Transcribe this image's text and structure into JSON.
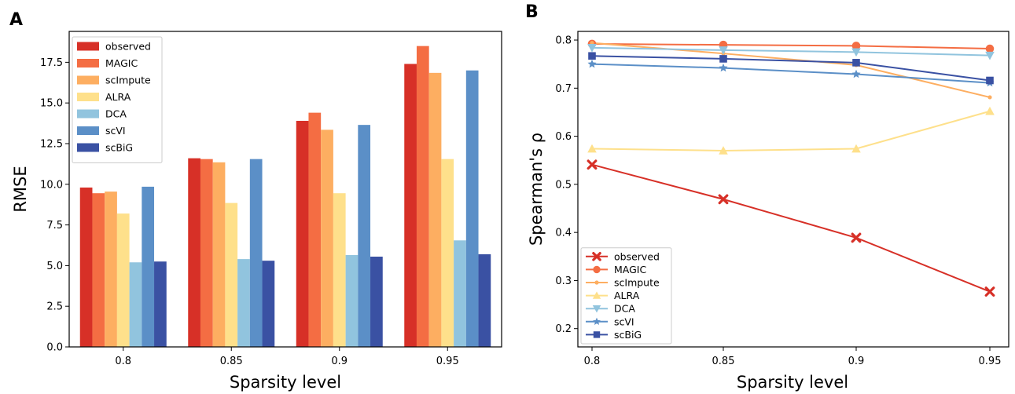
{
  "chart_data": [
    {
      "type": "bar",
      "panel_label": "A",
      "categories": [
        "0.8",
        "0.85",
        "0.9",
        "0.95"
      ],
      "xlabel": "Sparsity level",
      "ylabel": "RMSE",
      "ylim": [
        0,
        19.4
      ],
      "yticks": [
        "0.0",
        "2.5",
        "5.0",
        "7.5",
        "10.0",
        "12.5",
        "15.0",
        "17.5"
      ],
      "legend_position": "top-left",
      "series": [
        {
          "name": "observed",
          "color": "#d73027",
          "values": [
            9.8,
            11.6,
            13.9,
            17.4
          ]
        },
        {
          "name": "MAGIC",
          "color": "#f46d43",
          "values": [
            9.45,
            11.55,
            14.4,
            18.5
          ]
        },
        {
          "name": "scImpute",
          "color": "#fdae61",
          "values": [
            9.55,
            11.35,
            13.35,
            16.85
          ]
        },
        {
          "name": "ALRA",
          "color": "#fee08b",
          "values": [
            8.2,
            8.85,
            9.45,
            11.55
          ]
        },
        {
          "name": "DCA",
          "color": "#91c4de",
          "values": [
            5.2,
            5.4,
            5.65,
            6.55
          ]
        },
        {
          "name": "scVI",
          "color": "#5b8fc7",
          "values": [
            9.85,
            11.55,
            13.65,
            17.0
          ]
        },
        {
          "name": "scBiG",
          "color": "#3a51a3",
          "values": [
            5.25,
            5.3,
            5.55,
            5.7
          ]
        }
      ]
    },
    {
      "type": "line",
      "panel_label": "B",
      "x": [
        "0.8",
        "0.85",
        "0.9",
        "0.95"
      ],
      "xlabel": "Sparsity level",
      "ylabel": "Spearman's ρ",
      "ylim": [
        0.162,
        0.818
      ],
      "yticks": [
        "0.2",
        "0.3",
        "0.4",
        "0.5",
        "0.6",
        "0.7",
        "0.8"
      ],
      "legend_position": "bottom-left",
      "series": [
        {
          "name": "observed",
          "color": "#d73027",
          "marker": "x",
          "values": [
            0.541,
            0.469,
            0.389,
            0.277
          ]
        },
        {
          "name": "MAGIC",
          "color": "#f46d43",
          "marker": "circle",
          "values": [
            0.792,
            0.79,
            0.788,
            0.782
          ]
        },
        {
          "name": "scImpute",
          "color": "#fdae61",
          "marker": "dot",
          "values": [
            0.794,
            0.772,
            0.748,
            0.681
          ]
        },
        {
          "name": "ALRA",
          "color": "#fee08b",
          "marker": "triangle-up",
          "values": [
            0.574,
            0.57,
            0.574,
            0.652
          ]
        },
        {
          "name": "DCA",
          "color": "#91c4de",
          "marker": "triangle-down",
          "values": [
            0.784,
            0.779,
            0.775,
            0.768
          ]
        },
        {
          "name": "scVI",
          "color": "#5b8fc7",
          "marker": "star",
          "values": [
            0.75,
            0.742,
            0.729,
            0.711
          ]
        },
        {
          "name": "scBiG",
          "color": "#3a51a3",
          "marker": "square",
          "values": [
            0.767,
            0.761,
            0.753,
            0.716
          ]
        }
      ]
    }
  ]
}
